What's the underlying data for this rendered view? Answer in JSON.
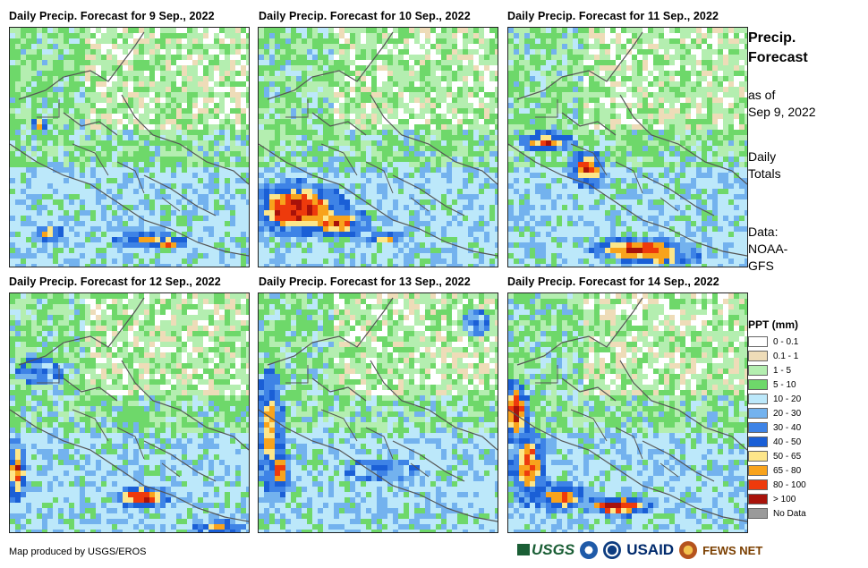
{
  "panels": [
    {
      "title": "Daily Precip. Forecast for 9 Sep., 2022"
    },
    {
      "title": "Daily Precip. Forecast for 10 Sep., 2022"
    },
    {
      "title": "Daily Precip. Forecast for 11 Sep., 2022"
    },
    {
      "title": "Daily Precip. Forecast for 12 Sep., 2022"
    },
    {
      "title": "Daily Precip. Forecast for 13 Sep., 2022"
    },
    {
      "title": "Daily Precip. Forecast for 14 Sep., 2022"
    }
  ],
  "side": {
    "title_line1": "Precip.",
    "title_line2": "Forecast",
    "asof_line1": "as of",
    "asof_line2": "Sep 9, 2022",
    "totals_line1": "Daily",
    "totals_line2": "Totals",
    "data_line1": "Data:",
    "data_line2": "NOAA-",
    "data_line3": "GFS"
  },
  "legend": {
    "title": "PPT (mm)",
    "items": [
      {
        "label": "0 - 0.1",
        "color": "#ffffff"
      },
      {
        "label": "0.1 - 1",
        "color": "#eedcb8"
      },
      {
        "label": "1 - 5",
        "color": "#b4eeb0"
      },
      {
        "label": "5 - 10",
        "color": "#6ed86a"
      },
      {
        "label": "10 - 20",
        "color": "#bce8fa"
      },
      {
        "label": "20 - 30",
        "color": "#73b2ee"
      },
      {
        "label": "30 - 40",
        "color": "#3e83e6"
      },
      {
        "label": "40 - 50",
        "color": "#1a5fd6"
      },
      {
        "label": "50 - 65",
        "color": "#fde68a"
      },
      {
        "label": "65 - 80",
        "color": "#f8a31c"
      },
      {
        "label": "80 - 100",
        "color": "#ee3a0c"
      },
      {
        "label": "> 100",
        "color": "#a8120a"
      },
      {
        "label": "No Data",
        "color": "#9a9a9a"
      }
    ]
  },
  "credit": "Map produced by USGS/EROS",
  "logos": {
    "usgs": "USGS",
    "usaid": "USAID",
    "fews": "FEWS NET"
  }
}
